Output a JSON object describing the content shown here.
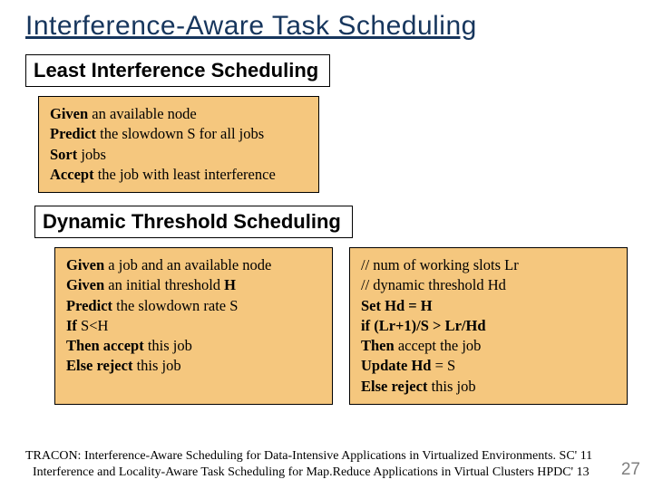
{
  "title": "Interference-Aware Task Scheduling",
  "section1": {
    "header": "Least Interference Scheduling",
    "lines": [
      {
        "bold": "Given",
        "rest": " an available node"
      },
      {
        "bold": "Predict",
        "rest": " the slowdown S for all jobs"
      },
      {
        "bold": "Sort",
        "rest": " jobs"
      },
      {
        "bold": "Accept",
        "rest": " the job with least interference"
      }
    ]
  },
  "section2": {
    "header": "Dynamic Threshold Scheduling",
    "left": [
      {
        "bold": "Given",
        "rest": " a job and an available node"
      },
      {
        "bold": "Given",
        "rest": " an initial threshold "
      },
      {
        "bold2": "H"
      },
      {
        "bold": "Predict",
        "rest": " the slowdown rate S"
      },
      {
        "bold": "If",
        "rest": " S<H"
      },
      {
        "bold": "Then accept",
        "rest": " this job"
      },
      {
        "bold": "Else reject",
        "rest": " this job"
      }
    ],
    "right": [
      "// num of working slots Lr",
      "// dynamic threshold Hd",
      "Set Hd = H",
      "if (Lr+1)/S > Lr/Hd",
      "Then accept the job",
      "Update Hd = S",
      "Else reject this job"
    ]
  },
  "refs": {
    "r1": "TRACON: Interference-Aware Scheduling for Data-Intensive Applications in Virtualized Environments. SC' 11",
    "r2": "Interference and Locality-Aware Task Scheduling for Map.Reduce Applications in Virtual Clusters HPDC' 13"
  },
  "pagenum": "27",
  "colors": {
    "title": "#17365d",
    "box_bg": "#f5c77e",
    "pagenum": "#7f7f7f"
  }
}
